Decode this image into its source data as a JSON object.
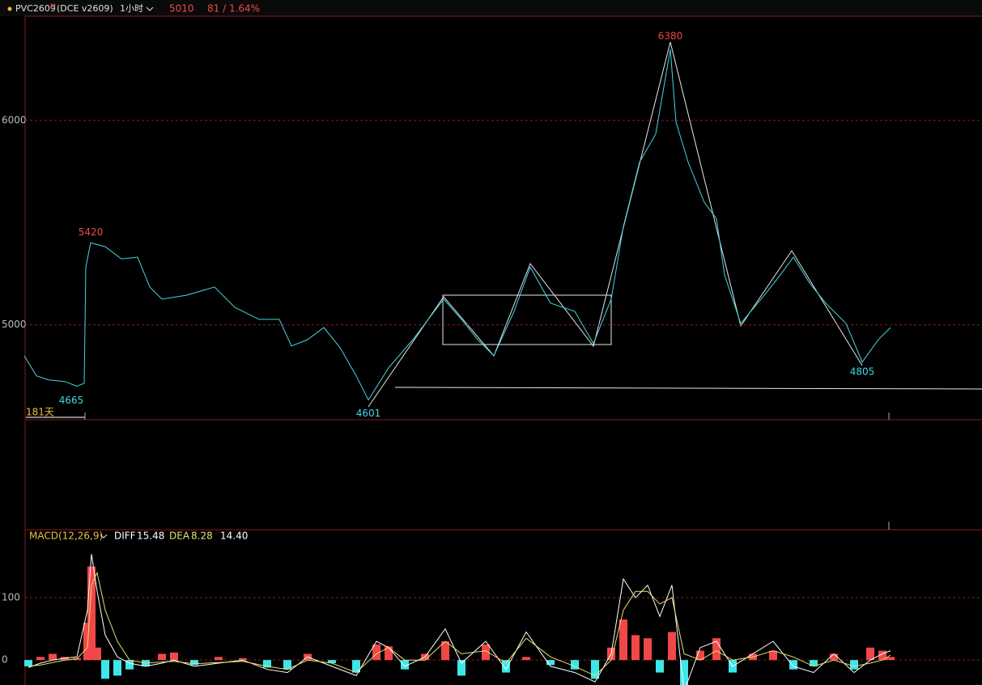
{
  "toolbar": {
    "symbol": "PVC2609",
    "superscript": "M",
    "exchange": "(DCE v2609)",
    "period": "1小时",
    "price": "5010",
    "change": "81 / 1.64%"
  },
  "chart_data": [
    {
      "type": "line",
      "color": "#45d6e0",
      "x": [
        0,
        15,
        30,
        50,
        65,
        74,
        76,
        82,
        100,
        120,
        140,
        155,
        170,
        200,
        235,
        260,
        290,
        315,
        330,
        350,
        370,
        390,
        410,
        425,
        450,
        480,
        518,
        540,
        560,
        580,
        605,
        625,
        650,
        680,
        703,
        725,
        740,
        760,
        780,
        798,
        805,
        820,
        840,
        855,
        865,
        885,
        910,
        930,
        950,
        970,
        990,
        1015,
        1035,
        1055,
        1070
      ],
      "values": [
        4849,
        4751,
        4731,
        4723,
        4700,
        4715,
        5283,
        5402,
        5382,
        5323,
        5331,
        5185,
        5126,
        5145,
        5185,
        5086,
        5027,
        5027,
        4897,
        4928,
        4987,
        4889,
        4751,
        4633,
        4790,
        4928,
        5126,
        5027,
        4928,
        4849,
        5066,
        5283,
        5106,
        5066,
        4909,
        5126,
        5481,
        5796,
        5934,
        6348,
        5993,
        5796,
        5599,
        5520,
        5244,
        5007,
        5126,
        5224,
        5331,
        5205,
        5106,
        5007,
        4818,
        4928,
        4987
      ],
      "xlim": [
        0,
        1183
      ],
      "ylim": [
        4540,
        6510
      ],
      "yticks": [
        6000,
        5000
      ],
      "grid": true,
      "annotations": [
        {
          "value": 5420,
          "x": 82
        },
        {
          "value": 4665,
          "x": 58
        },
        {
          "value": 4601,
          "x": 425
        },
        {
          "value": 6380,
          "x": 798
        },
        {
          "value": 4805,
          "x": 1035
        }
      ],
      "period_label": "181天"
    },
    {
      "type": "macd",
      "title": "MACD(12,26,9)",
      "x": [
        5,
        20,
        35,
        50,
        65,
        78,
        83,
        90,
        100,
        115,
        130,
        150,
        170,
        185,
        210,
        240,
        270,
        300,
        325,
        350,
        380,
        410,
        435,
        450,
        470,
        495,
        520,
        540,
        570,
        595,
        620,
        650,
        680,
        705,
        725,
        740,
        755,
        770,
        785,
        800,
        815,
        835,
        855,
        875,
        900,
        925,
        950,
        975,
        1000,
        1025,
        1045,
        1060,
        1070
      ],
      "histogram": {
        "values": [
          -10,
          5,
          10,
          5,
          3,
          60,
          150,
          20,
          -30,
          -25,
          -15,
          -10,
          10,
          12,
          -8,
          5,
          3,
          -12,
          -15,
          10,
          -5,
          -20,
          25,
          22,
          -15,
          10,
          30,
          -25,
          25,
          -20,
          5,
          -8,
          -15,
          -30,
          20,
          65,
          40,
          35,
          -20,
          45,
          -40,
          15,
          35,
          -20,
          10,
          15,
          -15,
          -10,
          10,
          -15,
          20,
          15,
          5
        ],
        "up_color": "#f04848",
        "down_color": "#3ee6ea",
        "readout": {
          "value": 14.4,
          "label": "14.40"
        }
      },
      "series": [
        {
          "name": "DIFF",
          "color": "#ffffff",
          "readout": 15.48,
          "values": [
            -12,
            -5,
            0,
            3,
            5,
            80,
            170,
            110,
            40,
            5,
            -5,
            -10,
            -5,
            0,
            -10,
            -5,
            0,
            -15,
            -20,
            5,
            -10,
            -25,
            30,
            20,
            -10,
            5,
            50,
            -5,
            30,
            -15,
            45,
            -10,
            -20,
            -35,
            10,
            130,
            100,
            120,
            70,
            120,
            -50,
            20,
            30,
            -10,
            10,
            30,
            -10,
            -20,
            10,
            -20,
            0,
            10,
            15
          ]
        },
        {
          "name": "DEA",
          "color": "#e8e070",
          "readout": 8.28,
          "values": [
            -10,
            -8,
            -4,
            0,
            2,
            20,
            120,
            140,
            80,
            30,
            0,
            -5,
            -3,
            -2,
            -6,
            -4,
            -2,
            -10,
            -15,
            0,
            -5,
            -20,
            10,
            20,
            0,
            0,
            30,
            10,
            15,
            -5,
            35,
            5,
            -10,
            -25,
            0,
            80,
            110,
            110,
            90,
            100,
            10,
            0,
            15,
            0,
            5,
            15,
            5,
            -10,
            0,
            -10,
            -5,
            0,
            8
          ]
        }
      ],
      "xlim": [
        0,
        1183
      ],
      "ylim": [
        -40,
        209
      ],
      "yticks": [
        0,
        100
      ],
      "grid": true
    }
  ]
}
